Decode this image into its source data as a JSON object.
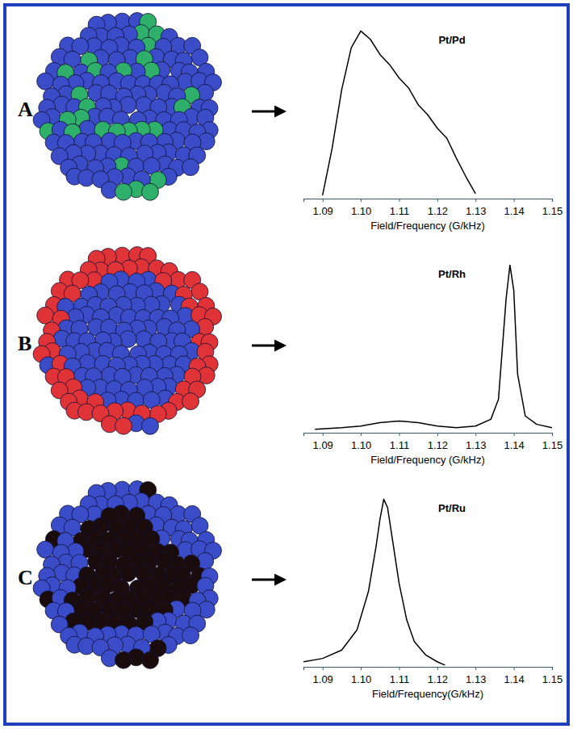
{
  "chart_data": [
    {
      "type": "line",
      "title": "Pt/Pd",
      "annotations": [
        "A"
      ],
      "xlabel": "Field/Frequency (G/kHz)",
      "xlim": [
        1.085,
        1.15
      ],
      "xticks": [
        1.09,
        {
          "value": 1.1,
          "label": "1.10"
        },
        1.11,
        1.12,
        1.13,
        1.14,
        1.15
      ],
      "ylim": [
        0,
        1.05
      ],
      "tick_labels": "x",
      "color": "#000000",
      "x": [
        1.09,
        1.0925,
        1.095,
        1.0975,
        1.1,
        1.1025,
        1.105,
        1.1075,
        1.11,
        1.1125,
        1.115,
        1.1175,
        1.12,
        1.1225,
        1.125,
        1.1275,
        1.13
      ],
      "values": [
        0.02,
        0.3,
        0.65,
        0.9,
        1.0,
        0.95,
        0.86,
        0.8,
        0.72,
        0.66,
        0.56,
        0.5,
        0.42,
        0.36,
        0.24,
        0.13,
        0.03
      ]
    },
    {
      "type": "line",
      "title": "Pt/Rh",
      "annotations": [
        "B"
      ],
      "xlabel": "Field/Frequency (G/kHz)",
      "xlim": [
        1.085,
        1.15
      ],
      "xticks": [
        1.09,
        {
          "value": 1.1,
          "label": "1.10"
        },
        1.11,
        1.12,
        1.13,
        1.14,
        1.15
      ],
      "ylim": [
        0,
        1.05
      ],
      "tick_labels": "x",
      "color": "#000000",
      "x": [
        1.088,
        1.095,
        1.1,
        1.105,
        1.11,
        1.115,
        1.12,
        1.125,
        1.13,
        1.134,
        1.136,
        1.138,
        1.139,
        1.14,
        1.141,
        1.143,
        1.146,
        1.15
      ],
      "values": [
        0.02,
        0.03,
        0.04,
        0.06,
        0.07,
        0.06,
        0.04,
        0.03,
        0.04,
        0.08,
        0.2,
        0.8,
        1.0,
        0.85,
        0.35,
        0.1,
        0.05,
        0.03
      ]
    },
    {
      "type": "line",
      "title": "Pt/Ru",
      "annotations": [
        "C"
      ],
      "xlabel": "Field/Frequency(G/kHz)",
      "xlim": [
        1.085,
        1.15
      ],
      "xticks": [
        1.09,
        {
          "value": 1.1,
          "label": "1.10"
        },
        1.11,
        1.12,
        1.13,
        1.14,
        1.15
      ],
      "ylim": [
        0,
        1.05
      ],
      "tick_labels": "x",
      "color": "#000000",
      "x": [
        1.085,
        1.09,
        1.095,
        1.099,
        1.102,
        1.104,
        1.105,
        1.106,
        1.107,
        1.108,
        1.11,
        1.112,
        1.114,
        1.117,
        1.12,
        1.122
      ],
      "values": [
        0.03,
        0.05,
        0.1,
        0.22,
        0.45,
        0.72,
        0.88,
        1.0,
        0.95,
        0.8,
        0.5,
        0.28,
        0.15,
        0.07,
        0.03,
        0.01
      ]
    }
  ]
}
